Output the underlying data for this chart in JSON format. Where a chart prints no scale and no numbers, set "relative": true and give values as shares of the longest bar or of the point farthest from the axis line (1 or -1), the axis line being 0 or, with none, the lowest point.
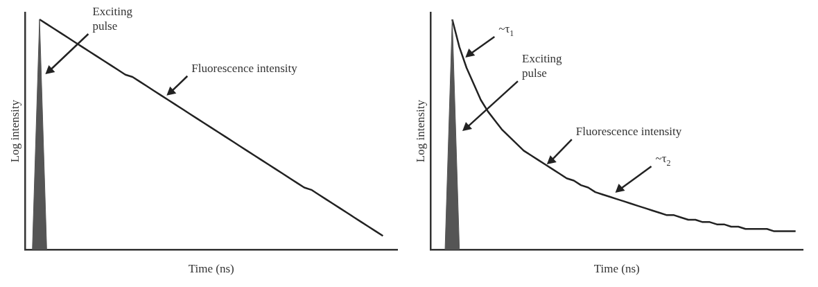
{
  "chart_data": [
    {
      "type": "line",
      "relative": true,
      "xlabel": "Time (ns)",
      "ylabel": "Log intensity",
      "grid": false,
      "legend": false,
      "marker": "none",
      "categories": [
        null,
        null,
        null,
        null,
        null,
        null,
        null,
        null,
        null,
        null,
        null,
        null,
        null,
        null,
        null,
        null,
        null,
        null,
        null,
        null,
        null,
        null,
        null,
        null,
        null,
        null,
        null,
        null,
        null,
        null,
        null,
        null,
        null,
        null,
        null,
        null,
        null,
        null,
        null,
        null,
        null,
        null,
        null,
        null,
        null,
        null,
        null,
        null,
        null,
        null,
        null,
        null,
        null
      ],
      "series": [
        {
          "type": "area",
          "color": "#555555",
          "values": [
            null,
            0,
            1,
            0,
            null,
            null,
            null,
            null,
            null,
            null,
            null,
            null,
            null,
            null,
            null,
            null,
            null,
            null,
            null,
            null,
            null,
            null,
            null,
            null,
            null,
            null,
            null,
            null,
            null,
            null,
            null,
            null,
            null,
            null,
            null,
            null,
            null,
            null,
            null,
            null,
            null,
            null,
            null,
            null,
            null,
            null,
            null,
            null,
            null,
            null,
            null,
            null,
            null
          ]
        },
        {
          "color": "#222222",
          "values": [
            null,
            null,
            1,
            0.98,
            0.96,
            0.94,
            0.92,
            0.9,
            0.88,
            0.86,
            0.84,
            0.82,
            0.8,
            0.78,
            0.76,
            0.75,
            0.73,
            0.71,
            0.69,
            0.67,
            0.65,
            0.63,
            0.61,
            0.59,
            0.57,
            0.55,
            0.53,
            0.51,
            0.49,
            0.47,
            0.45,
            0.43,
            0.41,
            0.39,
            0.37,
            0.35,
            0.33,
            0.31,
            0.29,
            0.27,
            0.26,
            0.24,
            0.22,
            0.2,
            0.18,
            0.16,
            0.14,
            0.12,
            0.1,
            0.08,
            0.06,
            null,
            null
          ]
        }
      ],
      "annotations": [
        "Exciting\npulse",
        "Fluorescence intensity"
      ]
    },
    {
      "type": "line",
      "relative": true,
      "xlabel": "Time (ns)",
      "ylabel": "Log intensity",
      "grid": false,
      "legend": false,
      "marker": "none",
      "categories": [
        null,
        null,
        null,
        null,
        null,
        null,
        null,
        null,
        null,
        null,
        null,
        null,
        null,
        null,
        null,
        null,
        null,
        null,
        null,
        null,
        null,
        null,
        null,
        null,
        null,
        null,
        null,
        null,
        null,
        null,
        null,
        null,
        null,
        null,
        null,
        null,
        null,
        null,
        null,
        null,
        null,
        null,
        null,
        null,
        null,
        null,
        null,
        null,
        null,
        null,
        null,
        null,
        null
      ],
      "series": [
        {
          "type": "area",
          "color": "#555555",
          "values": [
            null,
            null,
            0,
            1,
            0,
            null,
            null,
            null,
            null,
            null,
            null,
            null,
            null,
            null,
            null,
            null,
            null,
            null,
            null,
            null,
            null,
            null,
            null,
            null,
            null,
            null,
            null,
            null,
            null,
            null,
            null,
            null,
            null,
            null,
            null,
            null,
            null,
            null,
            null,
            null,
            null,
            null,
            null,
            null,
            null,
            null,
            null,
            null,
            null,
            null,
            null,
            null,
            null
          ]
        },
        {
          "color": "#222222",
          "values": [
            null,
            null,
            null,
            1,
            0.88,
            0.79,
            0.72,
            0.65,
            0.6,
            0.56,
            0.52,
            0.49,
            0.46,
            0.43,
            0.41,
            0.39,
            0.37,
            0.35,
            0.33,
            0.31,
            0.3,
            0.28,
            0.27,
            0.25,
            0.24,
            0.23,
            0.22,
            0.21,
            0.2,
            0.19,
            0.18,
            0.17,
            0.16,
            0.15,
            0.15,
            0.14,
            0.13,
            0.13,
            0.12,
            0.12,
            0.11,
            0.11,
            0.1,
            0.1,
            0.09,
            0.09,
            0.09,
            0.09,
            0.08,
            0.08,
            0.08,
            0.08,
            null
          ]
        }
      ],
      "annotations": [
        "~τ$_{1}$",
        "Exciting\npulse",
        "Fluorescence intensity",
        "~τ$_{2}$"
      ]
    }
  ]
}
